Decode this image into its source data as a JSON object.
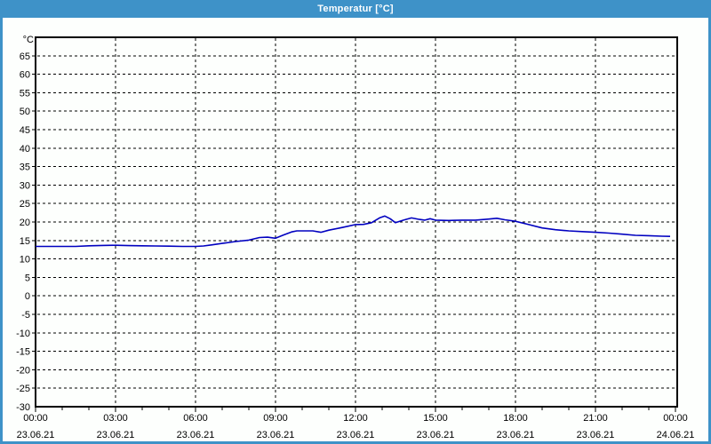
{
  "window": {
    "title": "Temperatur [°C]"
  },
  "colors": {
    "titlebar": "#3e92c8",
    "plot_background": "#fdfffd",
    "grid": "#000000",
    "axis": "#000000",
    "line": "#0000c0",
    "text": "#000000",
    "title_text": "#ffffff"
  },
  "chart_data": {
    "type": "line",
    "title": "Temperatur [°C]",
    "y_unit_label": "°C",
    "ylim": [
      -30,
      70
    ],
    "xlim_hours": [
      0,
      24
    ],
    "grid": "dashed",
    "legend_position": "none",
    "yticks": [
      65,
      60,
      55,
      50,
      45,
      40,
      35,
      30,
      25,
      20,
      15,
      10,
      5,
      0,
      -5,
      -10,
      -15,
      -20,
      -25,
      -30
    ],
    "xticks": [
      {
        "hour": 0,
        "time": "00:00",
        "date": "23.06.21"
      },
      {
        "hour": 3,
        "time": "03:00",
        "date": "23.06.21"
      },
      {
        "hour": 6,
        "time": "06:00",
        "date": "23.06.21"
      },
      {
        "hour": 9,
        "time": "09:00",
        "date": "23.06.21"
      },
      {
        "hour": 12,
        "time": "12:00",
        "date": "23.06.21"
      },
      {
        "hour": 15,
        "time": "15:00",
        "date": "23.06.21"
      },
      {
        "hour": 18,
        "time": "18:00",
        "date": "23.06.21"
      },
      {
        "hour": 21,
        "time": "21:00",
        "date": "23.06.21"
      },
      {
        "hour": 24,
        "time": "00:00",
        "date": "24.06.21"
      }
    ],
    "minor_xtick_step_hours": 1,
    "series": [
      {
        "name": "Temperatur",
        "color": "#0000c0",
        "points": [
          [
            0.0,
            13.4
          ],
          [
            0.5,
            13.4
          ],
          [
            1.0,
            13.4
          ],
          [
            1.5,
            13.4
          ],
          [
            2.0,
            13.55
          ],
          [
            2.5,
            13.65
          ],
          [
            3.0,
            13.7
          ],
          [
            3.5,
            13.6
          ],
          [
            4.0,
            13.55
          ],
          [
            4.5,
            13.5
          ],
          [
            5.0,
            13.45
          ],
          [
            5.5,
            13.4
          ],
          [
            6.0,
            13.4
          ],
          [
            6.3,
            13.5
          ],
          [
            6.6,
            13.8
          ],
          [
            7.0,
            14.2
          ],
          [
            7.5,
            14.7
          ],
          [
            8.0,
            15.1
          ],
          [
            8.4,
            15.8
          ],
          [
            8.7,
            15.9
          ],
          [
            9.0,
            15.6
          ],
          [
            9.3,
            16.5
          ],
          [
            9.6,
            17.3
          ],
          [
            9.8,
            17.6
          ],
          [
            10.0,
            17.6
          ],
          [
            10.4,
            17.6
          ],
          [
            10.7,
            17.2
          ],
          [
            11.0,
            17.8
          ],
          [
            11.5,
            18.5
          ],
          [
            12.0,
            19.3
          ],
          [
            12.3,
            19.35
          ],
          [
            12.6,
            19.8
          ],
          [
            12.9,
            21.1
          ],
          [
            13.1,
            21.6
          ],
          [
            13.3,
            20.9
          ],
          [
            13.5,
            19.8
          ],
          [
            13.8,
            20.5
          ],
          [
            14.1,
            21.1
          ],
          [
            14.4,
            20.7
          ],
          [
            14.6,
            20.5
          ],
          [
            14.8,
            20.9
          ],
          [
            15.0,
            20.5
          ],
          [
            15.5,
            20.4
          ],
          [
            16.0,
            20.5
          ],
          [
            16.5,
            20.5
          ],
          [
            17.0,
            20.8
          ],
          [
            17.3,
            21.0
          ],
          [
            17.6,
            20.6
          ],
          [
            18.0,
            20.2
          ],
          [
            18.5,
            19.3
          ],
          [
            19.0,
            18.4
          ],
          [
            19.5,
            17.9
          ],
          [
            20.0,
            17.6
          ],
          [
            20.5,
            17.4
          ],
          [
            21.0,
            17.2
          ],
          [
            21.5,
            17.0
          ],
          [
            22.0,
            16.7
          ],
          [
            22.5,
            16.4
          ],
          [
            23.0,
            16.3
          ],
          [
            23.5,
            16.15
          ],
          [
            23.8,
            16.1
          ]
        ]
      }
    ]
  }
}
